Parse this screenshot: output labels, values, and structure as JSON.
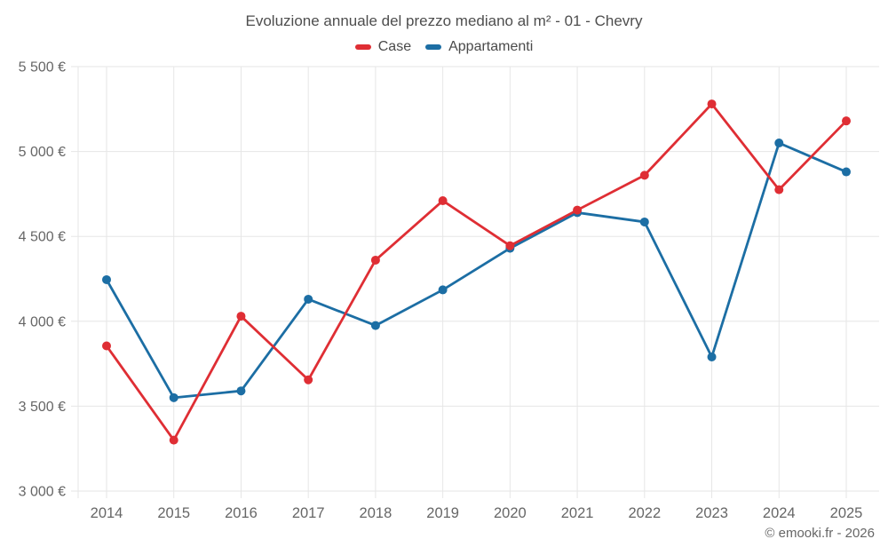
{
  "title": "Evoluzione annuale del prezzo mediano al m² - 01 - Chevry",
  "legend": [
    {
      "label": "Case",
      "color": "#df2e34"
    },
    {
      "label": "Appartamenti",
      "color": "#1c6ea4"
    }
  ],
  "footer": "© emooki.fr - 2026",
  "colors": {
    "grid": "#e6e6e6",
    "axis_text": "#666666",
    "title_text": "#4e4e4e"
  },
  "chart_data": {
    "type": "line",
    "title": "Evoluzione annuale del prezzo mediano al m² - 01 - Chevry",
    "xlabel": "",
    "ylabel": "",
    "x": [
      2014,
      2015,
      2016,
      2017,
      2018,
      2019,
      2020,
      2021,
      2022,
      2023,
      2024,
      2025
    ],
    "series": [
      {
        "name": "Case",
        "color": "#df2e34",
        "values": [
          3855,
          3300,
          4030,
          3655,
          4360,
          4710,
          4445,
          4655,
          4860,
          5280,
          4775,
          5180
        ]
      },
      {
        "name": "Appartamenti",
        "color": "#1c6ea4",
        "values": [
          4245,
          3550,
          3590,
          4130,
          3975,
          4185,
          4430,
          4640,
          4585,
          3790,
          5050,
          4880
        ]
      }
    ],
    "ylim": [
      3000,
      5500
    ],
    "y_tick_values": [
      3000,
      3500,
      4000,
      4500,
      5000,
      5500
    ],
    "y_tick_labels": [
      "3 000 €",
      "3 500 €",
      "4 000 €",
      "4 500 €",
      "5 000 €",
      "5 500 €"
    ],
    "grid": true,
    "legend_position": "top"
  }
}
